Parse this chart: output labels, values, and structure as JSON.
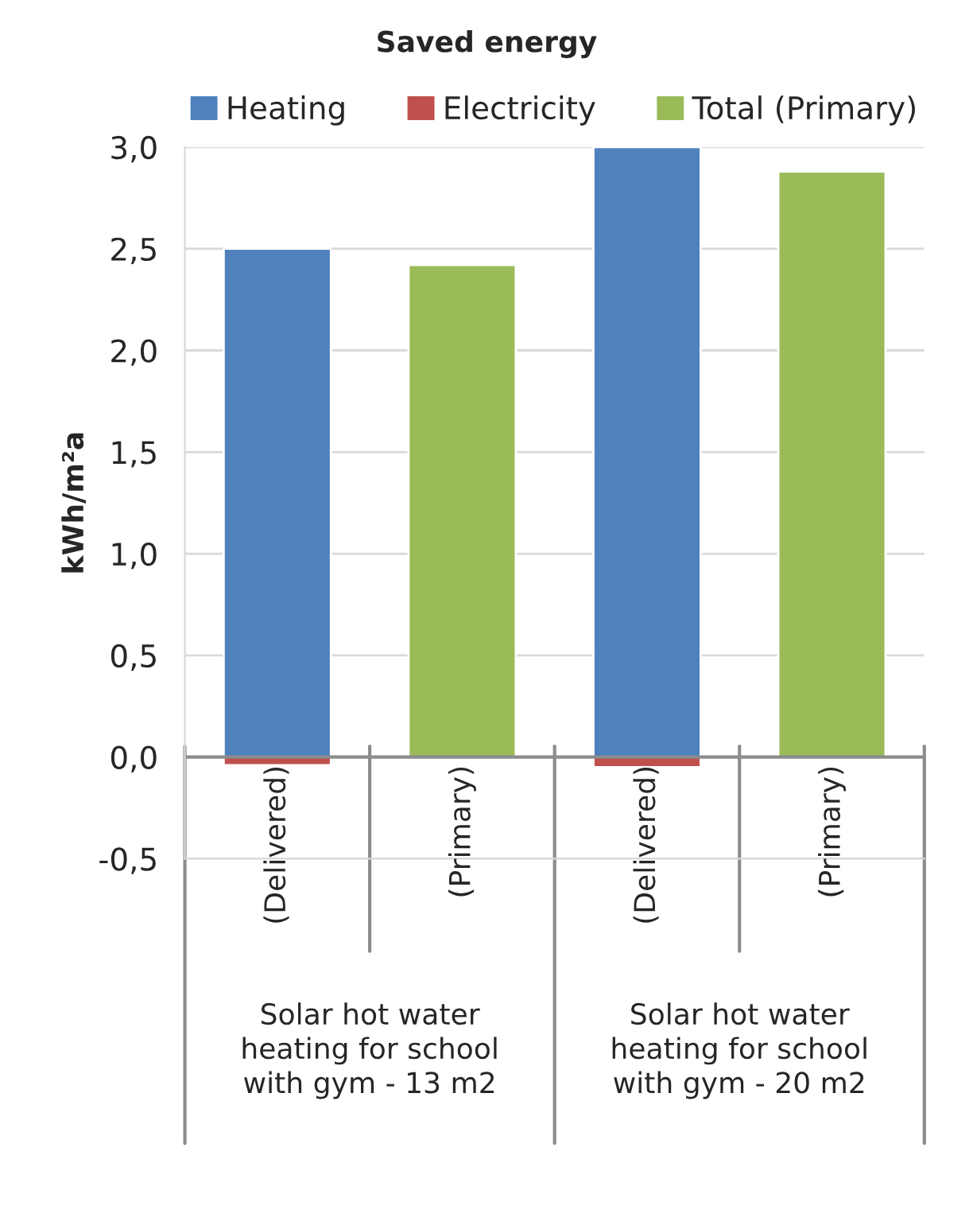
{
  "chart_data": {
    "type": "bar",
    "title": "Saved energy",
    "ylabel": "kWh/m²a",
    "categories": [
      "(Delivered)",
      "(Primary)",
      "(Delivered)",
      "(Primary)"
    ],
    "series": [
      {
        "name": "Heating",
        "color": "#4f81bd",
        "values": [
          2.5,
          null,
          3.0,
          null
        ]
      },
      {
        "name": "Electricity",
        "color": "#c0504d",
        "values": [
          -0.04,
          null,
          -0.05,
          null
        ]
      },
      {
        "name": "Total (Primary)",
        "color": "#9bbb59",
        "values": [
          null,
          2.42,
          null,
          2.88
        ]
      }
    ],
    "stacked": true,
    "annotations": [
      "Solar hot water\nheating for school\nwith gym - 13 m2",
      "Solar hot water\nheating for school\nwith gym - 20 m2"
    ],
    "ylim": [
      -0.5,
      3.0
    ],
    "yticks": [
      {
        "value": -0.5,
        "label": "-0,5"
      },
      {
        "value": 0,
        "label": "0,0"
      },
      {
        "value": 0.5,
        "label": "0,5"
      },
      {
        "value": 1.0,
        "label": "1,0"
      },
      {
        "value": 1.5,
        "label": "1,5"
      },
      {
        "value": 2.0,
        "label": "2,0"
      },
      {
        "value": 2.5,
        "label": "2,5"
      },
      {
        "value": 3.0,
        "label": "3,0"
      }
    ],
    "grid": "y",
    "legend": "top"
  }
}
